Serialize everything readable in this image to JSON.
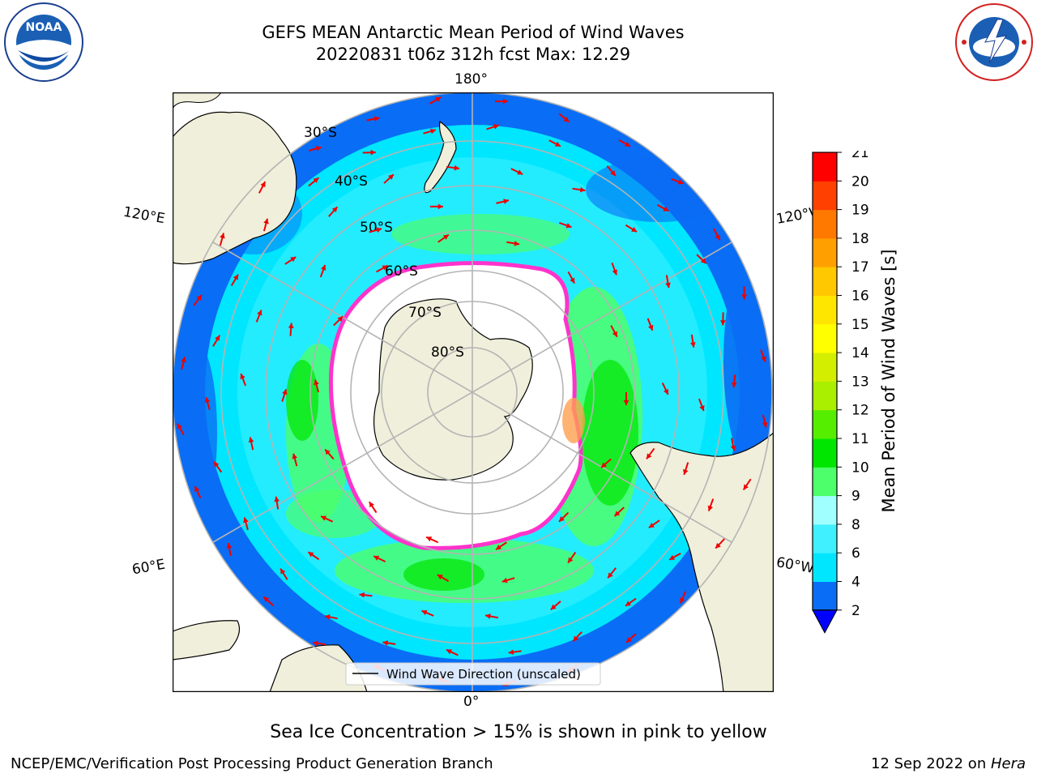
{
  "title_line1": "GEFS MEAN Antarctic Mean Period of Wind Waves",
  "title_line2": "20220831 t06z 312h fcst   Max: 12.29",
  "logos": {
    "left": {
      "icon": "noaa-logo",
      "text": "NOAA",
      "ring_text": "NATIONAL OCEANIC AND ATMOSPHERIC ADMINISTRATION · U.S. DEPARTMENT OF COMMERCE"
    },
    "right": {
      "icon": "nws-logo",
      "ring_text": "NATIONAL WEATHER SERVICE"
    }
  },
  "map": {
    "projection": "south-polar-stereographic",
    "lon_labels": {
      "top": "180°",
      "bottom": "0°",
      "left_upper": "120°E",
      "left_lower": "60°E",
      "right_upper": "120°W",
      "right_lower": "60°W"
    },
    "lat_labels": [
      "30°S",
      "40°S",
      "50°S",
      "60°S",
      "70°S",
      "80°S"
    ],
    "legend_label": "Wind Wave Direction (unscaled)",
    "colors": {
      "land": "#efefdb",
      "ocean_low": "#0a6df5",
      "ocean_mid": "#00e6ff",
      "ocean_high": "#4dff6a",
      "ice": "#ff33cc",
      "arrow": "#ee0000"
    }
  },
  "colorbar": {
    "label": "Mean Period of Wind Waves [s]",
    "ticks": [
      "2",
      "4",
      "6",
      "8",
      "9",
      "10",
      "11",
      "12",
      "13",
      "14",
      "15",
      "16",
      "17",
      "18",
      "19",
      "20",
      "21"
    ],
    "colors": [
      "#0a6df5",
      "#00e6ff",
      "#40f0ff",
      "#a0ffff",
      "#4dff6a",
      "#00e600",
      "#55ee00",
      "#aaee00",
      "#d4ee00",
      "#ffff00",
      "#ffe600",
      "#ffc800",
      "#ffa000",
      "#ff7800",
      "#ff4000",
      "#ff0000"
    ],
    "extend_color": "#0000ff"
  },
  "subtitle": "Sea Ice Concentration > 15% is shown in pink to yellow",
  "footer_left": "NCEP/EMC/Verification Post Processing Product Generation Branch",
  "footer_right_date": "12 Sep 2022 on ",
  "footer_right_host": "Hera"
}
